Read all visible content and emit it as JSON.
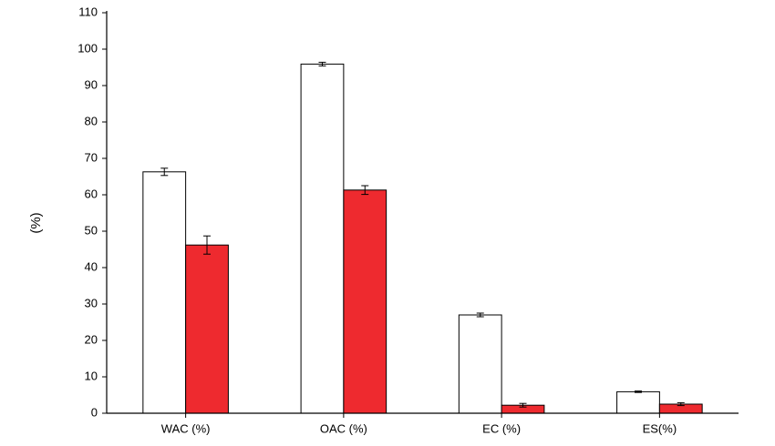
{
  "chart_data": {
    "type": "bar",
    "y_label": "(%)",
    "categories": [
      "WAC (%)",
      "OAC (%)",
      "EC (%)",
      "ES(%)"
    ],
    "series": [
      {
        "color": "#ffffff",
        "values": [
          66.3,
          95.9,
          27.0,
          5.9
        ],
        "errors": [
          1.0,
          0.5,
          0.5,
          0.2
        ]
      },
      {
        "color": "#ee2a2f",
        "values": [
          46.2,
          61.3,
          2.2,
          2.5
        ],
        "errors": [
          2.5,
          1.2,
          0.5,
          0.4
        ]
      }
    ],
    "ylim": [
      0,
      110
    ],
    "yticks": [
      0,
      10,
      20,
      30,
      40,
      50,
      60,
      70,
      80,
      90,
      100,
      110
    ],
    "grid": false
  }
}
